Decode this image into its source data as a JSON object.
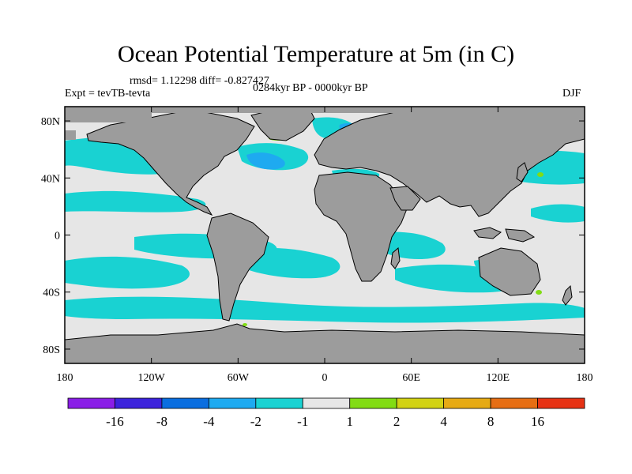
{
  "title": "Ocean Potential Temperature at 5m (in C)",
  "stats_line": "rmsd= 1.12298 diff= -0.827427",
  "experiment_line": "Expt = tevTB-tevta",
  "period_line": "0284kyr BP - 0000kyr BP",
  "season": "DJF",
  "map": {
    "projection": "cylindrical-equidistant",
    "lon_range": [
      -180,
      180
    ],
    "lat_range": [
      -90,
      90
    ],
    "land_color": "#9c9c9c",
    "coastline_color": "#000000",
    "lon_ticks": [
      {
        "value": -180,
        "label": "180"
      },
      {
        "value": -120,
        "label": "120W"
      },
      {
        "value": -60,
        "label": "60W"
      },
      {
        "value": 0,
        "label": "0"
      },
      {
        "value": 60,
        "label": "60E"
      },
      {
        "value": 120,
        "label": "120E"
      },
      {
        "value": 180,
        "label": "180"
      }
    ],
    "lat_ticks": [
      {
        "value": 80,
        "label": "80N"
      },
      {
        "value": 40,
        "label": "40N"
      },
      {
        "value": 0,
        "label": "0"
      },
      {
        "value": -40,
        "label": "40S"
      },
      {
        "value": -80,
        "label": "80S"
      }
    ]
  },
  "colorbar": {
    "colors": [
      "#8a1ee6",
      "#3c23dc",
      "#0a6ee0",
      "#1eaaf0",
      "#19d2d2",
      "#e6e6e6",
      "#82dc14",
      "#d2d214",
      "#e6aa14",
      "#e66e14",
      "#e63214"
    ],
    "labels": [
      "-16",
      "-8",
      "-4",
      "-2",
      "-1",
      "1",
      "2",
      "4",
      "8",
      "16"
    ]
  }
}
